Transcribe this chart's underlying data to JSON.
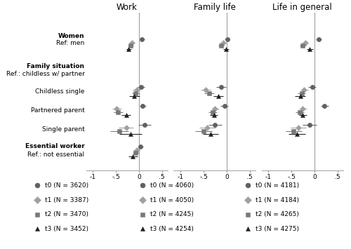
{
  "panel_titles": [
    "Work",
    "Family life",
    "Life in general"
  ],
  "colors": {
    "t0": "#606060",
    "t1": "#a0a0a0",
    "t2": "#787878",
    "t3": "#202020"
  },
  "markers": {
    "t0": "o",
    "t1": "D",
    "t2": "s",
    "t3": "^"
  },
  "legend": {
    "work": [
      "t0 (N = 3620)",
      "t1 (N = 3387)",
      "t2 (N = 3470)",
      "t3 (N = 3452)"
    ],
    "family": [
      "t0 (N = 4060)",
      "t1 (N = 4050)",
      "t2 (N = 4245)",
      "t3 (N = 4254)"
    ],
    "life": [
      "t0 (N = 4181)",
      "t1 (N = 4184)",
      "t2 (N = 4265)",
      "t3 (N = 4275)"
    ]
  },
  "group_y": {
    "women": 9.0,
    "childless_single": 6.0,
    "partnered_parent": 4.8,
    "single_parent": 3.6,
    "essential_worker": 2.2
  },
  "t_offsets": {
    "t0": 0.3,
    "t1": 0.1,
    "t2": -0.1,
    "t3": -0.3
  },
  "row_labels": [
    [
      9.5,
      "Women",
      true
    ],
    [
      9.05,
      "Ref: men",
      false
    ],
    [
      7.6,
      "Family situation",
      true
    ],
    [
      7.1,
      "Ref.: childless w/ partner",
      false
    ],
    [
      6.0,
      "Childless single",
      false
    ],
    [
      4.8,
      "Partnered parent",
      false
    ],
    [
      3.6,
      "Single parent",
      false
    ],
    [
      2.55,
      "Essential worker",
      true
    ],
    [
      2.0,
      "Ref.: not essential",
      false
    ]
  ],
  "data": {
    "work": {
      "women": {
        "t0": [
          0.07,
          0.02,
          0.12
        ],
        "t1": [
          -0.15,
          -0.21,
          -0.09
        ],
        "t2": [
          -0.18,
          -0.24,
          -0.12
        ],
        "t3": [
          -0.22,
          -0.28,
          -0.16
        ]
      },
      "childless_single": {
        "t0": [
          0.05,
          -0.03,
          0.13
        ],
        "t1": [
          -0.05,
          -0.13,
          0.03
        ],
        "t2": [
          -0.07,
          -0.15,
          0.01
        ],
        "t3": [
          -0.1,
          -0.21,
          0.01
        ]
      },
      "partnered_parent": {
        "t0": [
          0.08,
          0.01,
          0.15
        ],
        "t1": [
          -0.48,
          -0.58,
          -0.38
        ],
        "t2": [
          -0.45,
          -0.55,
          -0.35
        ],
        "t3": [
          -0.28,
          -0.38,
          -0.18
        ]
      },
      "single_parent": {
        "t0": [
          0.12,
          -0.02,
          0.26
        ],
        "t1": [
          -0.28,
          -0.44,
          -0.12
        ],
        "t2": [
          -0.42,
          -0.62,
          -0.22
        ],
        "t3": [
          -0.18,
          -0.42,
          0.06
        ]
      },
      "essential_worker": {
        "t0": [
          0.04,
          -0.02,
          0.1
        ],
        "t1": [
          -0.05,
          -0.12,
          0.02
        ],
        "t2": [
          -0.07,
          -0.14,
          0.0
        ],
        "t3": [
          -0.13,
          -0.23,
          -0.03
        ]
      }
    },
    "family": {
      "women": {
        "t0": [
          0.01,
          -0.04,
          0.06
        ],
        "t1": [
          -0.08,
          -0.14,
          -0.02
        ],
        "t2": [
          -0.12,
          -0.18,
          -0.06
        ],
        "t3": [
          -0.01,
          -0.07,
          0.05
        ]
      },
      "childless_single": {
        "t0": [
          -0.12,
          -0.22,
          -0.02
        ],
        "t1": [
          -0.46,
          -0.57,
          -0.35
        ],
        "t2": [
          -0.38,
          -0.49,
          -0.27
        ],
        "t3": [
          -0.18,
          -0.29,
          -0.07
        ]
      },
      "partnered_parent": {
        "t0": [
          -0.05,
          -0.13,
          0.03
        ],
        "t1": [
          -0.25,
          -0.34,
          -0.16
        ],
        "t2": [
          -0.3,
          -0.39,
          -0.21
        ],
        "t3": [
          -0.28,
          -0.37,
          -0.19
        ]
      },
      "single_parent": {
        "t0": [
          -0.25,
          -0.4,
          -0.1
        ],
        "t1": [
          -0.42,
          -0.6,
          -0.24
        ],
        "t2": [
          -0.5,
          -0.68,
          -0.32
        ],
        "t3": [
          -0.35,
          -0.52,
          -0.18
        ]
      },
      "essential_worker": {
        "t0": null,
        "t1": null,
        "t2": null,
        "t3": null
      }
    },
    "life": {
      "women": {
        "t0": [
          0.1,
          0.04,
          0.16
        ],
        "t1": [
          -0.2,
          -0.27,
          -0.13
        ],
        "t2": [
          -0.25,
          -0.32,
          -0.18
        ],
        "t3": [
          -0.1,
          -0.17,
          -0.03
        ]
      },
      "childless_single": {
        "t0": [
          -0.05,
          -0.13,
          0.03
        ],
        "t1": [
          -0.22,
          -0.31,
          -0.13
        ],
        "t2": [
          -0.28,
          -0.37,
          -0.19
        ],
        "t3": [
          -0.31,
          -0.42,
          -0.2
        ]
      },
      "partnered_parent": {
        "t0": [
          0.22,
          0.14,
          0.3
        ],
        "t1": [
          -0.25,
          -0.34,
          -0.16
        ],
        "t2": [
          -0.32,
          -0.41,
          -0.23
        ],
        "t3": [
          -0.25,
          -0.34,
          -0.16
        ]
      },
      "single_parent": {
        "t0": [
          -0.1,
          -0.25,
          0.05
        ],
        "t1": [
          -0.35,
          -0.52,
          -0.18
        ],
        "t2": [
          -0.45,
          -0.63,
          -0.27
        ],
        "t3": [
          -0.38,
          -0.57,
          -0.19
        ]
      },
      "essential_worker": {
        "t0": null,
        "t1": null,
        "t2": null,
        "t3": null
      }
    }
  }
}
